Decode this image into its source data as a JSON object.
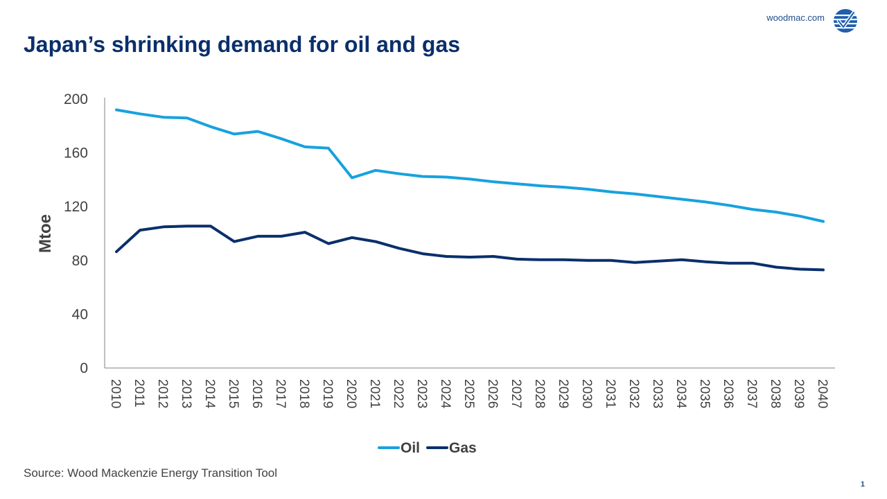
{
  "header": {
    "site": "woodmac.com",
    "logo_icon": "woodmac-checkmark-logo-icon"
  },
  "title": "Japan’s shrinking demand for oil and gas",
  "source": "Source: Wood Mackenzie Energy Transition Tool",
  "page_number": "1",
  "colors": {
    "oil": "#17a2dd",
    "gas": "#0a2f6b",
    "axis": "#808080",
    "text": "#404040"
  },
  "chart_data": {
    "type": "line",
    "title": "",
    "xlabel": "",
    "ylabel": "Mtoe",
    "ylim": [
      0,
      200
    ],
    "yticks": [
      0,
      40,
      80,
      120,
      160,
      200
    ],
    "grid": false,
    "legend": "bottom",
    "categories": [
      "2010",
      "2011",
      "2012",
      "2013",
      "2014",
      "2015",
      "2016",
      "2017",
      "2018",
      "2019",
      "2020",
      "2021",
      "2022",
      "2023",
      "2024",
      "2025",
      "2026",
      "2027",
      "2028",
      "2029",
      "2030",
      "2031",
      "2032",
      "2033",
      "2034",
      "2035",
      "2036",
      "2037",
      "2038",
      "2039",
      "2040"
    ],
    "series": [
      {
        "name": "Oil",
        "values": [
          192,
          189,
          186.5,
          186,
          179.5,
          174,
          176,
          170.5,
          164.5,
          163.5,
          141.5,
          147,
          144.5,
          142.5,
          142,
          140.5,
          138.5,
          137,
          135.5,
          134.5,
          133,
          131,
          129.5,
          127.5,
          125.5,
          123.5,
          121,
          118,
          116,
          113,
          109
        ]
      },
      {
        "name": "Gas",
        "values": [
          86.5,
          102.5,
          105,
          105.5,
          105.5,
          94,
          98,
          98,
          101,
          92.5,
          97,
          94,
          89,
          85,
          83,
          82.5,
          83,
          81,
          80.5,
          80.5,
          80,
          80,
          78.5,
          79.5,
          80.5,
          79,
          78,
          78,
          75,
          73.5,
          73
        ]
      }
    ]
  }
}
